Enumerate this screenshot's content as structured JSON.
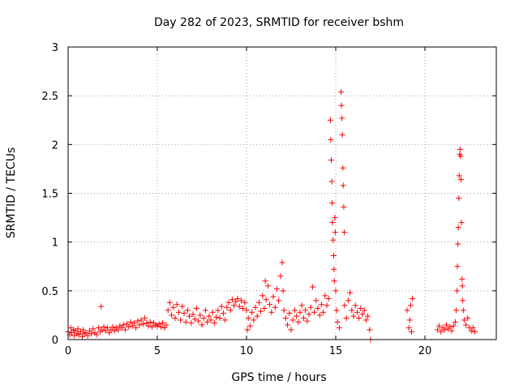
{
  "chart_data": {
    "type": "scatter",
    "title": "Day 282 of 2023, SRMTID for receiver bshm",
    "xlabel": "GPS time / hours",
    "ylabel": "SRMTID / TECUs",
    "xlim": [
      0,
      24
    ],
    "ylim": [
      0,
      3
    ],
    "xticks": [
      0,
      5,
      10,
      15,
      20
    ],
    "xtick_labels": [
      "0",
      "5",
      "10",
      "15",
      "20"
    ],
    "yticks": [
      0,
      0.5,
      1,
      1.5,
      2,
      2.5,
      3
    ],
    "ytick_labels": [
      "0",
      "0.5",
      "1",
      "1.5",
      "2",
      "2.5",
      "3"
    ],
    "grid": true,
    "marker": "+",
    "color": "#ff0000",
    "series": [
      {
        "name": "SRMTID",
        "points": [
          [
            0.0,
            0.08
          ],
          [
            0.1,
            0.05
          ],
          [
            0.15,
            0.12
          ],
          [
            0.2,
            0.07
          ],
          [
            0.3,
            0.1
          ],
          [
            0.35,
            0.04
          ],
          [
            0.4,
            0.09
          ],
          [
            0.5,
            0.06
          ],
          [
            0.55,
            0.11
          ],
          [
            0.6,
            0.05
          ],
          [
            0.7,
            0.08
          ],
          [
            0.8,
            0.03
          ],
          [
            0.85,
            0.1
          ],
          [
            0.9,
            0.06
          ],
          [
            1.0,
            0.07
          ],
          [
            1.1,
            0.04
          ],
          [
            1.2,
            0.09
          ],
          [
            1.3,
            0.06
          ],
          [
            1.4,
            0.11
          ],
          [
            1.5,
            0.07
          ],
          [
            1.6,
            0.05
          ],
          [
            1.7,
            0.12
          ],
          [
            1.8,
            0.08
          ],
          [
            1.85,
            0.34
          ],
          [
            1.9,
            0.1
          ],
          [
            2.0,
            0.13
          ],
          [
            2.1,
            0.09
          ],
          [
            2.2,
            0.12
          ],
          [
            2.3,
            0.07
          ],
          [
            2.4,
            0.1
          ],
          [
            2.5,
            0.13
          ],
          [
            2.6,
            0.09
          ],
          [
            2.7,
            0.12
          ],
          [
            2.8,
            0.1
          ],
          [
            2.9,
            0.14
          ],
          [
            3.0,
            0.12
          ],
          [
            3.1,
            0.15
          ],
          [
            3.2,
            0.1
          ],
          [
            3.3,
            0.16
          ],
          [
            3.4,
            0.13
          ],
          [
            3.5,
            0.18
          ],
          [
            3.6,
            0.14
          ],
          [
            3.7,
            0.17
          ],
          [
            3.8,
            0.12
          ],
          [
            3.9,
            0.19
          ],
          [
            4.0,
            0.15
          ],
          [
            4.1,
            0.2
          ],
          [
            4.2,
            0.16
          ],
          [
            4.3,
            0.22
          ],
          [
            4.4,
            0.17
          ],
          [
            4.5,
            0.14
          ],
          [
            4.6,
            0.18
          ],
          [
            4.7,
            0.13
          ],
          [
            4.8,
            0.17
          ],
          [
            4.9,
            0.15
          ],
          [
            5.0,
            0.14
          ],
          [
            5.1,
            0.16
          ],
          [
            5.2,
            0.13
          ],
          [
            5.3,
            0.17
          ],
          [
            5.4,
            0.12
          ],
          [
            5.5,
            0.15
          ],
          [
            5.6,
            0.3
          ],
          [
            5.7,
            0.38
          ],
          [
            5.8,
            0.25
          ],
          [
            5.9,
            0.33
          ],
          [
            6.0,
            0.22
          ],
          [
            6.1,
            0.36
          ],
          [
            6.2,
            0.28
          ],
          [
            6.3,
            0.2
          ],
          [
            6.4,
            0.34
          ],
          [
            6.5,
            0.27
          ],
          [
            6.6,
            0.18
          ],
          [
            6.7,
            0.3
          ],
          [
            6.8,
            0.24
          ],
          [
            6.9,
            0.17
          ],
          [
            7.0,
            0.26
          ],
          [
            7.1,
            0.21
          ],
          [
            7.2,
            0.32
          ],
          [
            7.3,
            0.19
          ],
          [
            7.4,
            0.25
          ],
          [
            7.5,
            0.15
          ],
          [
            7.6,
            0.22
          ],
          [
            7.7,
            0.3
          ],
          [
            7.8,
            0.18
          ],
          [
            7.9,
            0.24
          ],
          [
            8.0,
            0.2
          ],
          [
            8.1,
            0.28
          ],
          [
            8.2,
            0.17
          ],
          [
            8.3,
            0.23
          ],
          [
            8.4,
            0.3
          ],
          [
            8.5,
            0.22
          ],
          [
            8.6,
            0.34
          ],
          [
            8.7,
            0.27
          ],
          [
            8.8,
            0.2
          ],
          [
            8.9,
            0.33
          ],
          [
            9.0,
            0.38
          ],
          [
            9.1,
            0.3
          ],
          [
            9.2,
            0.41
          ],
          [
            9.3,
            0.35
          ],
          [
            9.4,
            0.39
          ],
          [
            9.5,
            0.42
          ],
          [
            9.6,
            0.34
          ],
          [
            9.7,
            0.4
          ],
          [
            9.8,
            0.32
          ],
          [
            9.9,
            0.38
          ],
          [
            10.0,
            0.3
          ],
          [
            10.05,
            0.1
          ],
          [
            10.1,
            0.22
          ],
          [
            10.2,
            0.14
          ],
          [
            10.3,
            0.28
          ],
          [
            10.4,
            0.2
          ],
          [
            10.5,
            0.33
          ],
          [
            10.6,
            0.24
          ],
          [
            10.7,
            0.38
          ],
          [
            10.8,
            0.29
          ],
          [
            10.9,
            0.45
          ],
          [
            11.0,
            0.32
          ],
          [
            11.05,
            0.6
          ],
          [
            11.1,
            0.41
          ],
          [
            11.2,
            0.55
          ],
          [
            11.3,
            0.36
          ],
          [
            11.4,
            0.28
          ],
          [
            11.5,
            0.44
          ],
          [
            11.6,
            0.33
          ],
          [
            11.7,
            0.52
          ],
          [
            11.8,
            0.4
          ],
          [
            11.9,
            0.65
          ],
          [
            12.0,
            0.79
          ],
          [
            12.05,
            0.5
          ],
          [
            12.1,
            0.3
          ],
          [
            12.2,
            0.22
          ],
          [
            12.3,
            0.15
          ],
          [
            12.4,
            0.27
          ],
          [
            12.5,
            0.1
          ],
          [
            12.6,
            0.2
          ],
          [
            12.7,
            0.3
          ],
          [
            12.8,
            0.24
          ],
          [
            12.9,
            0.18
          ],
          [
            13.0,
            0.28
          ],
          [
            13.1,
            0.35
          ],
          [
            13.2,
            0.22
          ],
          [
            13.3,
            0.3
          ],
          [
            13.4,
            0.19
          ],
          [
            13.5,
            0.26
          ],
          [
            13.6,
            0.33
          ],
          [
            13.7,
            0.54
          ],
          [
            13.8,
            0.28
          ],
          [
            13.9,
            0.4
          ],
          [
            14.0,
            0.32
          ],
          [
            14.1,
            0.25
          ],
          [
            14.2,
            0.36
          ],
          [
            14.3,
            0.28
          ],
          [
            14.4,
            0.45
          ],
          [
            14.5,
            0.35
          ],
          [
            14.6,
            0.42
          ],
          [
            14.7,
            2.25
          ],
          [
            14.72,
            2.05
          ],
          [
            14.75,
            1.84
          ],
          [
            14.78,
            1.62
          ],
          [
            14.8,
            1.4
          ],
          [
            14.82,
            1.2
          ],
          [
            14.85,
            1.02
          ],
          [
            14.88,
            0.86
          ],
          [
            14.9,
            0.72
          ],
          [
            14.92,
            0.6
          ],
          [
            14.95,
            1.25
          ],
          [
            14.97,
            1.1
          ],
          [
            15.0,
            0.5
          ],
          [
            15.05,
            0.3
          ],
          [
            15.1,
            0.18
          ],
          [
            15.2,
            0.12
          ],
          [
            15.3,
            2.54
          ],
          [
            15.32,
            2.4
          ],
          [
            15.35,
            2.27
          ],
          [
            15.37,
            2.1
          ],
          [
            15.4,
            1.76
          ],
          [
            15.42,
            1.58
          ],
          [
            15.45,
            1.36
          ],
          [
            15.48,
            1.1
          ],
          [
            15.5,
            0.35
          ],
          [
            15.6,
            0.22
          ],
          [
            15.7,
            0.4
          ],
          [
            15.8,
            0.48
          ],
          [
            15.9,
            0.3
          ],
          [
            16.0,
            0.24
          ],
          [
            16.1,
            0.35
          ],
          [
            16.2,
            0.28
          ],
          [
            16.3,
            0.22
          ],
          [
            16.4,
            0.32
          ],
          [
            16.5,
            0.26
          ],
          [
            16.6,
            0.3
          ],
          [
            16.7,
            0.2
          ],
          [
            16.8,
            0.24
          ],
          [
            16.9,
            0.1
          ],
          [
            16.95,
            0.0
          ],
          [
            19.0,
            0.3
          ],
          [
            19.1,
            0.12
          ],
          [
            19.15,
            0.2
          ],
          [
            19.2,
            0.35
          ],
          [
            19.25,
            0.08
          ],
          [
            19.3,
            0.42
          ],
          [
            20.7,
            0.1
          ],
          [
            20.8,
            0.14
          ],
          [
            20.9,
            0.08
          ],
          [
            21.0,
            0.12
          ],
          [
            21.1,
            0.1
          ],
          [
            21.2,
            0.15
          ],
          [
            21.3,
            0.11
          ],
          [
            21.4,
            0.13
          ],
          [
            21.5,
            0.09
          ],
          [
            21.6,
            0.14
          ],
          [
            21.7,
            0.18
          ],
          [
            21.75,
            0.3
          ],
          [
            21.8,
            0.5
          ],
          [
            21.82,
            0.75
          ],
          [
            21.85,
            0.98
          ],
          [
            21.87,
            1.15
          ],
          [
            21.9,
            1.45
          ],
          [
            21.92,
            1.68
          ],
          [
            21.95,
            1.9
          ],
          [
            21.97,
            1.95
          ],
          [
            22.0,
            1.88
          ],
          [
            22.02,
            1.64
          ],
          [
            22.05,
            1.2
          ],
          [
            22.08,
            0.62
          ],
          [
            22.1,
            0.55
          ],
          [
            22.12,
            0.4
          ],
          [
            22.15,
            0.3
          ],
          [
            22.2,
            0.2
          ],
          [
            22.3,
            0.15
          ],
          [
            22.4,
            0.22
          ],
          [
            22.5,
            0.12
          ],
          [
            22.6,
            0.09
          ],
          [
            22.7,
            0.12
          ],
          [
            22.8,
            0.08
          ]
        ]
      }
    ]
  }
}
